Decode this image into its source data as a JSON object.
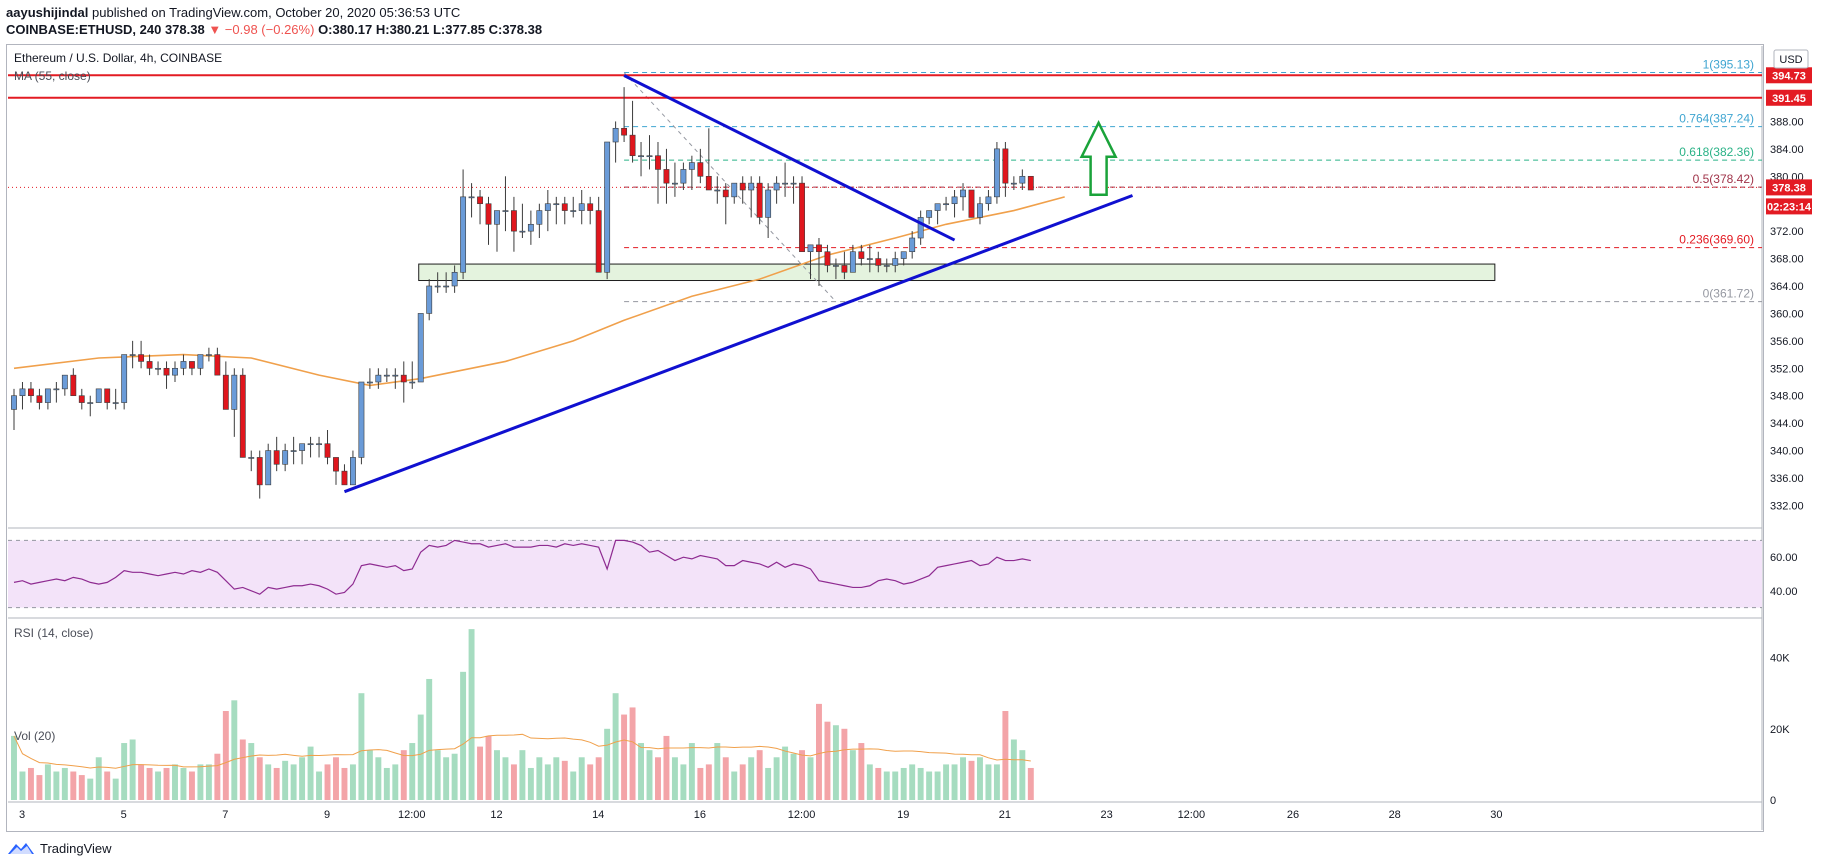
{
  "header": {
    "author": "aayushijindal",
    "published_text": "published on TradingView.com, October 20, 2020 05:36:53 UTC",
    "symbol": "COINBASE:ETHUSD, 240",
    "last": "378.38",
    "change": "▼ −0.98 (−0.26%)",
    "ohlc": "O:380.17 H:380.21 L:377.85 C:378.38"
  },
  "footer": {
    "brand": "TradingView",
    "logo_icon": "tradingview-logo-icon"
  },
  "colors": {
    "up": "#6a9bd8",
    "down": "#e0161d",
    "ma": "#f0a04b",
    "trend": "#1010d0",
    "resistance": "#e31b23",
    "rsi_line": "#8e2b91",
    "rsi_band": "#f3e3f9",
    "vol_up": "#a6dcc0",
    "vol_down": "#f3a4a8",
    "fib_blue": "#3fa5d1",
    "fib_green": "#29b286",
    "zone_fill": "#e4f3de"
  },
  "chart_data": [
    {
      "type": "candlestick",
      "title": "Ethereum / U.S. Dollar, 4h, COINBASE",
      "indicator_label": "MA (55, close)",
      "currency_label": "USD",
      "x_ticks": [
        "3",
        "5",
        "7",
        "9",
        "12:00",
        "12",
        "14",
        "16",
        "12:00",
        "19",
        "21",
        "23",
        "12:00",
        "26",
        "28",
        "30"
      ],
      "y_ticks": [
        332,
        336,
        340,
        344,
        348,
        352,
        356,
        360,
        364,
        368,
        372,
        376,
        380,
        384,
        388
      ],
      "ylim": [
        329,
        399
      ],
      "xlim": [
        0,
        207
      ],
      "ohlc": [
        [
          346,
          349,
          343,
          348
        ],
        [
          348,
          350,
          346,
          349
        ],
        [
          349,
          350,
          347,
          348
        ],
        [
          348,
          349,
          346,
          347
        ],
        [
          347,
          349,
          346,
          349
        ],
        [
          349,
          350,
          347,
          349
        ],
        [
          349,
          351,
          348,
          351
        ],
        [
          351,
          352,
          348,
          348
        ],
        [
          348,
          349,
          346,
          347
        ],
        [
          347,
          348,
          345,
          347
        ],
        [
          347,
          349,
          347,
          349
        ],
        [
          349,
          349,
          346,
          347
        ],
        [
          347,
          349,
          346,
          347
        ],
        [
          347,
          354,
          346,
          354
        ],
        [
          354,
          356,
          352,
          354
        ],
        [
          354,
          356,
          352,
          353
        ],
        [
          353,
          354,
          351,
          352
        ],
        [
          352,
          353,
          351,
          352
        ],
        [
          352,
          353,
          349,
          351
        ],
        [
          351,
          353,
          350,
          352
        ],
        [
          352,
          354,
          351,
          353
        ],
        [
          353,
          353,
          351,
          352
        ],
        [
          352,
          354,
          351,
          354
        ],
        [
          354,
          355,
          353,
          354
        ],
        [
          354,
          355,
          351,
          351
        ],
        [
          351,
          353,
          346,
          346
        ],
        [
          346,
          352,
          342,
          351
        ],
        [
          351,
          352,
          339,
          339
        ],
        [
          339,
          340,
          337,
          339
        ],
        [
          339,
          340,
          333,
          335
        ],
        [
          335,
          341,
          335,
          340
        ],
        [
          340,
          342,
          337,
          338
        ],
        [
          338,
          341,
          337,
          340
        ],
        [
          340,
          342,
          338,
          340
        ],
        [
          340,
          341,
          338,
          341
        ],
        [
          341,
          342,
          339,
          341
        ],
        [
          341,
          342,
          339,
          341
        ],
        [
          341,
          343,
          338,
          339
        ],
        [
          339,
          339,
          335,
          337
        ],
        [
          337,
          338,
          335,
          335
        ],
        [
          335,
          340,
          335,
          339
        ],
        [
          339,
          350,
          338,
          350
        ],
        [
          350,
          352,
          349,
          350
        ],
        [
          350,
          352,
          349,
          351
        ],
        [
          351,
          352,
          350,
          351
        ],
        [
          351,
          352,
          349,
          351
        ],
        [
          351,
          353,
          347,
          350
        ],
        [
          350,
          353,
          349,
          350
        ],
        [
          350,
          360,
          350,
          360
        ],
        [
          360,
          365,
          359,
          364
        ],
        [
          364,
          366,
          363,
          364
        ],
        [
          364,
          366,
          363,
          364
        ],
        [
          364,
          367,
          363,
          366
        ],
        [
          366,
          381,
          365,
          377
        ],
        [
          377,
          379,
          374,
          377
        ],
        [
          377,
          378,
          373,
          376
        ],
        [
          376,
          377,
          370,
          373
        ],
        [
          373,
          375,
          369,
          375
        ],
        [
          375,
          380,
          372,
          375
        ],
        [
          375,
          377,
          369,
          372
        ],
        [
          372,
          376,
          371,
          372
        ],
        [
          372,
          375,
          370,
          373
        ],
        [
          373,
          376,
          371,
          375
        ],
        [
          375,
          378,
          372,
          376
        ],
        [
          376,
          377,
          373,
          376
        ],
        [
          376,
          377,
          373,
          375
        ],
        [
          375,
          377,
          374,
          375
        ],
        [
          375,
          378,
          373,
          376
        ],
        [
          376,
          377,
          373,
          375
        ],
        [
          375,
          377,
          366,
          366
        ],
        [
          366,
          385,
          365,
          385
        ],
        [
          385,
          388,
          382,
          387
        ],
        [
          387,
          393,
          385,
          386
        ],
        [
          386,
          391,
          382,
          383
        ],
        [
          383,
          385,
          380,
          383
        ],
        [
          383,
          386,
          381,
          383
        ],
        [
          383,
          385,
          376,
          381
        ],
        [
          381,
          384,
          376,
          379
        ],
        [
          379,
          382,
          377,
          379
        ],
        [
          379,
          382,
          378,
          381
        ],
        [
          381,
          383,
          378,
          382
        ],
        [
          382,
          384,
          379,
          380
        ],
        [
          380,
          387,
          378,
          378
        ],
        [
          378,
          380,
          376,
          378
        ],
        [
          378,
          379,
          373,
          377
        ],
        [
          377,
          379,
          376,
          379
        ],
        [
          379,
          380,
          376,
          378
        ],
        [
          378,
          380,
          374,
          379
        ],
        [
          379,
          380,
          373,
          374
        ],
        [
          374,
          379,
          371,
          378
        ],
        [
          378,
          380,
          376,
          379
        ],
        [
          379,
          382,
          377,
          379
        ],
        [
          379,
          380,
          376,
          379
        ],
        [
          379,
          380,
          369,
          369
        ],
        [
          369,
          370,
          365,
          370
        ],
        [
          370,
          371,
          364,
          369
        ],
        [
          369,
          370,
          366,
          367
        ],
        [
          367,
          368,
          365,
          367
        ],
        [
          367,
          369,
          365,
          366
        ],
        [
          366,
          370,
          366,
          369
        ],
        [
          369,
          370,
          367,
          368
        ],
        [
          368,
          370,
          366,
          368
        ],
        [
          368,
          369,
          366,
          367
        ],
        [
          367,
          368,
          366,
          367
        ],
        [
          367,
          369,
          366,
          368
        ],
        [
          368,
          369,
          367,
          369
        ],
        [
          369,
          372,
          368,
          371
        ],
        [
          371,
          375,
          370,
          374
        ],
        [
          374,
          375,
          373,
          375
        ],
        [
          375,
          376,
          373,
          376
        ],
        [
          376,
          377,
          375,
          376
        ],
        [
          376,
          378,
          374,
          377
        ],
        [
          377,
          379,
          375,
          378
        ],
        [
          378,
          378,
          374,
          374
        ],
        [
          374,
          377,
          373,
          376
        ],
        [
          376,
          378,
          375,
          377
        ],
        [
          377,
          385,
          376,
          384
        ],
        [
          384,
          385,
          377,
          379
        ],
        [
          379,
          380,
          378,
          379
        ],
        [
          379,
          381,
          378,
          380
        ],
        [
          380,
          380,
          378,
          378
        ]
      ],
      "ma55": [
        [
          0,
          352
        ],
        [
          10,
          353.5
        ],
        [
          20,
          354
        ],
        [
          28,
          353.5
        ],
        [
          36,
          351
        ],
        [
          42,
          349.5
        ],
        [
          48,
          350.5
        ],
        [
          52,
          351.5
        ],
        [
          58,
          353
        ],
        [
          66,
          356
        ],
        [
          72,
          359
        ],
        [
          80,
          362.5
        ],
        [
          88,
          365
        ],
        [
          96,
          368.5
        ],
        [
          104,
          371
        ],
        [
          110,
          373
        ],
        [
          118,
          375
        ],
        [
          124,
          377
        ]
      ],
      "resistance_lines": [
        394.73,
        391.45
      ],
      "price_tags": [
        "394.73",
        "391.45",
        "378.38",
        "02:23:14"
      ],
      "last_price": 378.38,
      "fib_levels": [
        {
          "label": "1(395.13)",
          "ratio": "1",
          "value": "395.13",
          "price": 395.13
        },
        {
          "label": "0.764(387.24)",
          "ratio": "0.764",
          "value": "387.24",
          "price": 387.24
        },
        {
          "label": "0.618(382.36)",
          "ratio": "0.618",
          "value": "382.36",
          "price": 382.36
        },
        {
          "label": "0.5(378.42)",
          "ratio": "0.5",
          "value": "378.42",
          "price": 378.42
        },
        {
          "label": "0.236(369.60)",
          "ratio": "0.236",
          "value": "369.60",
          "price": 369.6
        },
        {
          "label": "0(361.72)",
          "ratio": "0",
          "value": "361.72",
          "price": 361.72
        }
      ],
      "support_zone": {
        "low": 364.8,
        "high": 367.2
      },
      "trendlines": [
        {
          "name": "rising-support",
          "from": [
            39,
            334
          ],
          "to": [
            132,
            377.2
          ]
        },
        {
          "name": "falling-resistance",
          "from": [
            72,
            394.7
          ],
          "to": [
            111,
            370.7
          ]
        }
      ],
      "arrow": {
        "direction": "up",
        "x": 128
      }
    },
    {
      "type": "line",
      "title": "RSI (14, close)",
      "ylim": [
        25,
        75
      ],
      "y_ticks": [
        40,
        60
      ],
      "band": [
        30,
        70
      ],
      "values": [
        45,
        46,
        44,
        45,
        46,
        47,
        46,
        48,
        47,
        45,
        44,
        45,
        48,
        52,
        51,
        51,
        50,
        49,
        50,
        51,
        50,
        52,
        51,
        53,
        51,
        46,
        41,
        42,
        40,
        38,
        42,
        41,
        42,
        43,
        43,
        44,
        43,
        41,
        38,
        39,
        44,
        55,
        56,
        55,
        54,
        55,
        52,
        53,
        63,
        67,
        66,
        67,
        70,
        69,
        68,
        68,
        66,
        67,
        68,
        66,
        66,
        66,
        67,
        67,
        66,
        68,
        67,
        68,
        67,
        66,
        53,
        70,
        70,
        69,
        67,
        63,
        64,
        61,
        58,
        60,
        59,
        61,
        60,
        59,
        55,
        55,
        58,
        57,
        56,
        54,
        57,
        54,
        56,
        55,
        53,
        46,
        45,
        44,
        43,
        42,
        42,
        43,
        46,
        47,
        46,
        44,
        45,
        47,
        49,
        54,
        55,
        56,
        57,
        58,
        55,
        56,
        60,
        58,
        58,
        59,
        58
      ]
    },
    {
      "type": "bar",
      "title": "Vol (20)",
      "ylim": [
        0,
        50000
      ],
      "y_ticks": [
        "0",
        "20K",
        "40K"
      ],
      "values": [
        18000,
        8000,
        9000,
        7000,
        10000,
        8000,
        9000,
        8000,
        7000,
        6000,
        12000,
        8000,
        6000,
        16000,
        17000,
        10000,
        9000,
        8000,
        9000,
        10000,
        9000,
        8000,
        10000,
        10000,
        13000,
        25000,
        28000,
        17000,
        16000,
        12000,
        10000,
        9000,
        11000,
        10000,
        12000,
        15000,
        8000,
        10000,
        12000,
        9000,
        10000,
        30000,
        14000,
        12000,
        9000,
        10000,
        14000,
        16000,
        24000,
        34000,
        14000,
        12000,
        13000,
        36000,
        48000,
        15000,
        18000,
        14000,
        12000,
        10000,
        14000,
        9000,
        12000,
        10000,
        12000,
        11000,
        8000,
        12000,
        10000,
        12000,
        20000,
        30000,
        24000,
        26000,
        16000,
        14000,
        12000,
        18000,
        12000,
        10000,
        16000,
        9000,
        10000,
        16000,
        12000,
        8000,
        10000,
        12000,
        14000,
        9000,
        12000,
        15000,
        13000,
        14000,
        12000,
        27000,
        22000,
        21000,
        20000,
        14000,
        16000,
        10000,
        9000,
        8000,
        8000,
        9000,
        10000,
        9000,
        8000,
        8000,
        10000,
        10000,
        12000,
        11000,
        12000,
        10000,
        10000,
        25000,
        17000,
        14000,
        9000
      ]
    }
  ]
}
